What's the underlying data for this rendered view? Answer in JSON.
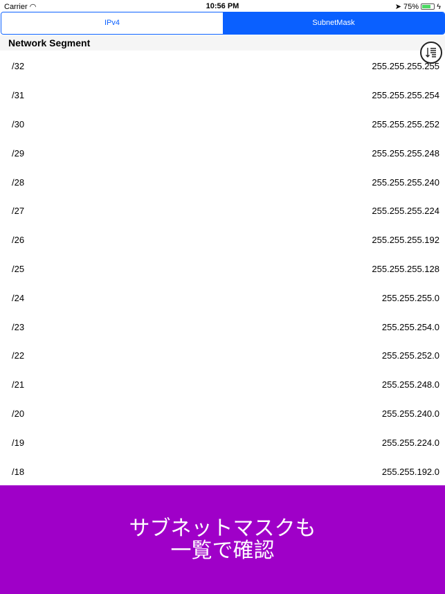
{
  "status": {
    "carrier": "Carrier",
    "time": "10:56 PM",
    "battery": "75%",
    "battery_level": 0.75
  },
  "tabs": [
    {
      "label": "IPv4",
      "selected": false
    },
    {
      "label": "SubnetMask",
      "selected": true
    }
  ],
  "header": {
    "title": "Network Segment"
  },
  "rows": [
    {
      "prefix": "/32",
      "mask": "255.255.255.255"
    },
    {
      "prefix": "/31",
      "mask": "255.255.255.254"
    },
    {
      "prefix": "/30",
      "mask": "255.255.255.252"
    },
    {
      "prefix": "/29",
      "mask": "255.255.255.248"
    },
    {
      "prefix": "/28",
      "mask": "255.255.255.240"
    },
    {
      "prefix": "/27",
      "mask": "255.255.255.224"
    },
    {
      "prefix": "/26",
      "mask": "255.255.255.192"
    },
    {
      "prefix": "/25",
      "mask": "255.255.255.128"
    },
    {
      "prefix": "/24",
      "mask": "255.255.255.0"
    },
    {
      "prefix": "/23",
      "mask": "255.255.254.0"
    },
    {
      "prefix": "/22",
      "mask": "255.255.252.0"
    },
    {
      "prefix": "/21",
      "mask": "255.255.248.0"
    },
    {
      "prefix": "/20",
      "mask": "255.255.240.0"
    },
    {
      "prefix": "/19",
      "mask": "255.255.224.0"
    },
    {
      "prefix": "/18",
      "mask": "255.255.192.0"
    }
  ],
  "banner": {
    "line1": "サブネットマスクも",
    "line2": "一覧で確認",
    "color": "#9f00c8"
  },
  "colors": {
    "accent": "#0a60ff"
  }
}
